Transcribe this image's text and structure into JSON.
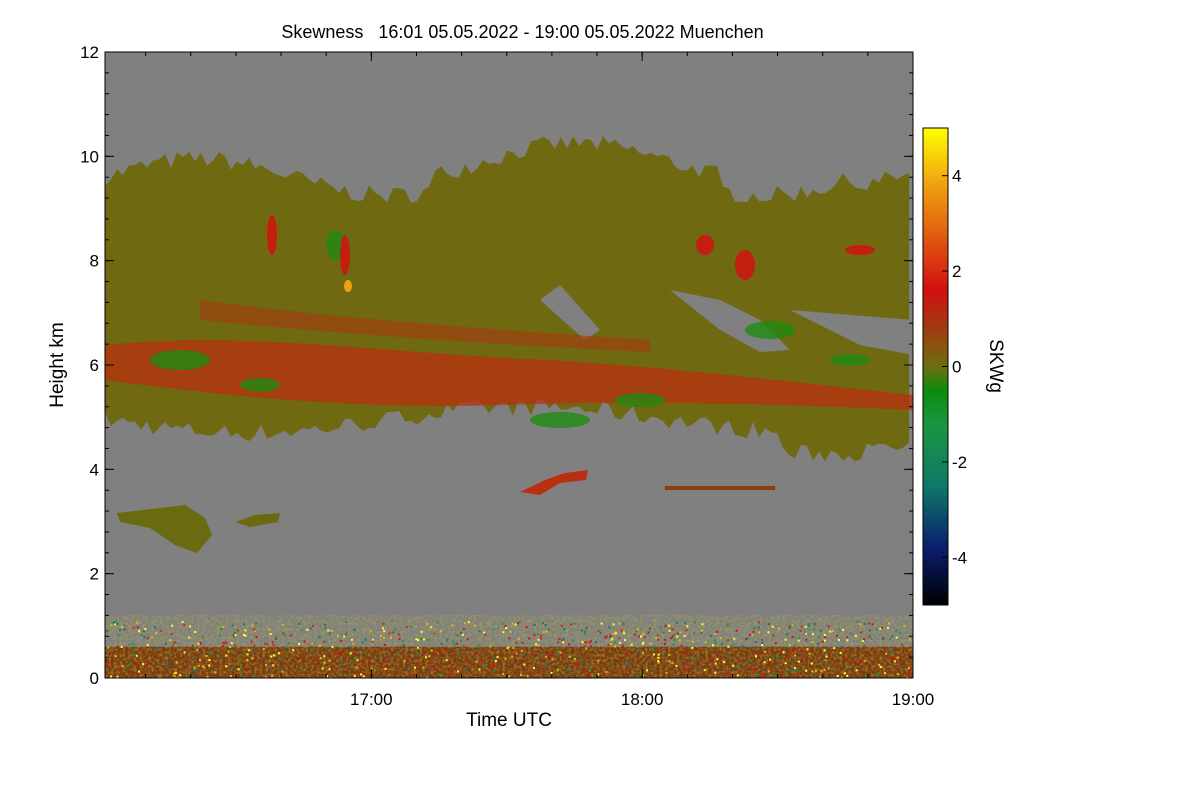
{
  "title": "Skewness   16:01 05.05.2022 - 19:00 05.05.2022 Muenchen",
  "chart_data": {
    "type": "heatmap",
    "title": "Skewness   16:01 05.05.2022 - 19:00 05.05.2022 Muenchen",
    "xlabel": "Time UTC",
    "ylabel": "Height km",
    "colorbar_label": "SKWg",
    "xlim": [
      "16:01",
      "19:00"
    ],
    "ylim": [
      0,
      12
    ],
    "x_ticks": [
      "17:00",
      "18:00",
      "19:00"
    ],
    "y_ticks": [
      0,
      2,
      4,
      6,
      8,
      10,
      12
    ],
    "colorbar_range": [
      -5,
      5
    ],
    "colorbar_ticks": [
      -4,
      -2,
      0,
      2,
      4
    ],
    "background_color": "#808080",
    "colormap": [
      "#000000",
      "#0a1e6e",
      "#0f7868",
      "#1a9640",
      "#0e8a0e",
      "#6e6e10",
      "#a03c10",
      "#d21010",
      "#e06010",
      "#f0a010",
      "#ffff00"
    ],
    "features": [
      {
        "description": "main echo layer",
        "height_km": [
          4.5,
          10.0
        ],
        "dominant_skewness": 0
      },
      {
        "description": "positive skewness band",
        "height_km": [
          5.2,
          6.5
        ],
        "dominant_skewness": 1.5
      },
      {
        "description": "mid-level cloud patch",
        "height_km": [
          2.5,
          3.3
        ],
        "time": [
          "16:04",
          "16:45"
        ]
      },
      {
        "description": "surface clutter layer",
        "height_km": [
          0,
          1.2
        ],
        "dominant_skewness": 0.5
      }
    ]
  }
}
